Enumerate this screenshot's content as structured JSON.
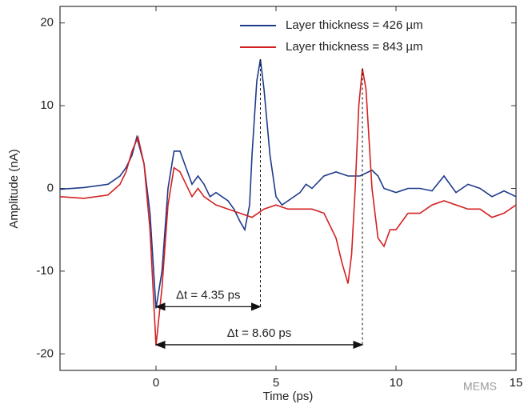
{
  "chart_data": {
    "type": "line",
    "xlabel": "Time (ps)",
    "ylabel": "Amplitude (nA)",
    "xlim": [
      -4,
      15
    ],
    "ylim": [
      -22,
      22
    ],
    "xticks": [
      0,
      5,
      10,
      15
    ],
    "yticks": [
      -20,
      -10,
      0,
      10,
      20
    ],
    "legend": "upper right",
    "series": [
      {
        "name": "Layer thickness = 426 µm",
        "color": "#1f3a8a",
        "x": [
          -4,
          -3,
          -2,
          -1.5,
          -1.25,
          -1,
          -0.8,
          -0.5,
          -0.25,
          0,
          0.25,
          0.5,
          0.75,
          1,
          1.25,
          1.5,
          1.75,
          2,
          2.25,
          2.5,
          3,
          3.25,
          3.5,
          3.7,
          3.9,
          4,
          4.2,
          4.35,
          4.5,
          4.75,
          5,
          5.25,
          5.5,
          6,
          6.25,
          6.5,
          7,
          7.5,
          8,
          8.5,
          9,
          9.25,
          9.5,
          10,
          10.5,
          11,
          11.5,
          12,
          12.5,
          13,
          13.5,
          14,
          14.5,
          15
        ],
        "values": [
          -0.1,
          0.1,
          0.5,
          1.5,
          2.5,
          4,
          6.2,
          3,
          -3,
          -14.5,
          -10,
          0,
          4.5,
          4.5,
          2.5,
          0.5,
          1.5,
          0.5,
          -1,
          -0.5,
          -1.5,
          -2.5,
          -4,
          -5,
          -2,
          4,
          13,
          15.6,
          12,
          4,
          -1,
          -2,
          -1.5,
          -0.5,
          0.5,
          0,
          1.5,
          2,
          1.5,
          1.5,
          2.2,
          1.5,
          0,
          -0.5,
          0,
          0,
          -0.3,
          1.5,
          -0.5,
          0.5,
          0,
          -1,
          -0.3,
          -1
        ]
      },
      {
        "name": "Layer thickness = 843 µm",
        "color": "#d42020",
        "x": [
          -4,
          -3,
          -2,
          -1.5,
          -1.25,
          -1,
          -0.75,
          -0.5,
          -0.25,
          0,
          0.25,
          0.5,
          0.75,
          1,
          1.25,
          1.5,
          1.75,
          2,
          2.5,
          3,
          3.5,
          4,
          4.5,
          5,
          5.5,
          6,
          6.5,
          7,
          7.5,
          7.75,
          8,
          8.15,
          8.3,
          8.45,
          8.6,
          8.75,
          9,
          9.25,
          9.5,
          9.75,
          10,
          10.5,
          11,
          11.5,
          12,
          12.5,
          13,
          13.5,
          14,
          14.5,
          15
        ],
        "values": [
          -1,
          -1.2,
          -0.8,
          0.5,
          2,
          4.5,
          6.2,
          3,
          -5,
          -19,
          -12,
          -2,
          2.5,
          2,
          0.5,
          -1,
          0,
          -1,
          -2,
          -2.5,
          -3,
          -3.5,
          -2.5,
          -2,
          -2.5,
          -2.5,
          -2.5,
          -3,
          -6,
          -9,
          -11.5,
          -8,
          0,
          10,
          14.5,
          12,
          0,
          -6,
          -7,
          -5,
          -5,
          -3,
          -3,
          -2,
          -1.5,
          -2,
          -2.5,
          -2.5,
          -3.5,
          -3,
          -2
        ]
      }
    ],
    "annotations": [
      {
        "text": "Δt = 4.35 ps",
        "x": [
          0,
          4.35
        ],
        "y": -14.3
      },
      {
        "text": "Δt = 8.60 ps",
        "x": [
          0,
          8.6
        ],
        "y": -18.9
      }
    ],
    "watermark": "MEMS"
  }
}
